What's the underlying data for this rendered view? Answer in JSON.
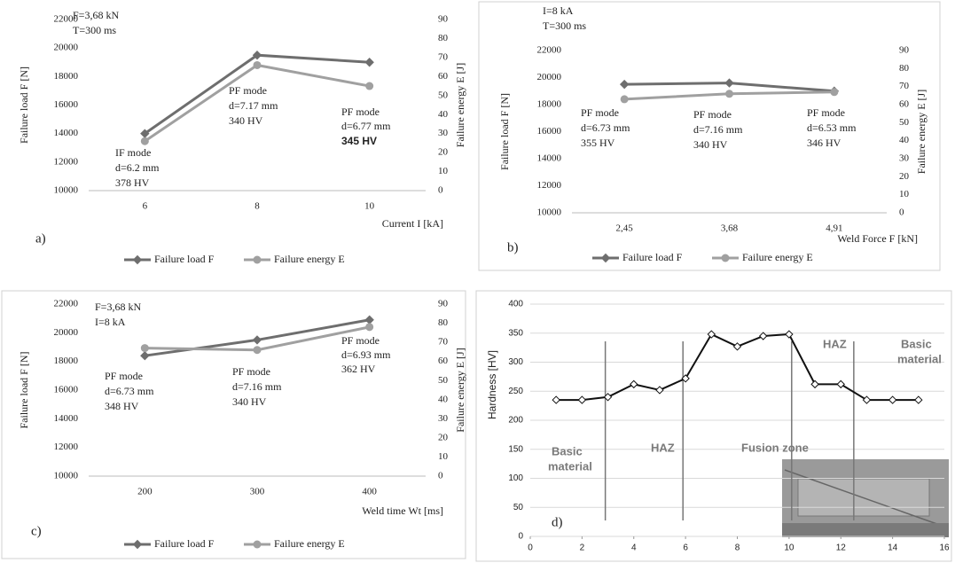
{
  "chart_data": [
    {
      "type": "line",
      "panel_label": "a)",
      "xlabel": "Current I [kA]",
      "ylabel": "Failure load F [N]",
      "y2label": "Failure energy E [J]",
      "categories": [
        "6",
        "8",
        "10"
      ],
      "series": [
        {
          "name": "Failure load F",
          "color": "#6e6e6e",
          "marker": "diamond",
          "axis": "y",
          "values": [
            14000,
            19500,
            19000
          ]
        },
        {
          "name": "Failure energy E",
          "color": "#a0a0a0",
          "marker": "circle",
          "axis": "y2",
          "values": [
            26,
            66,
            55
          ]
        }
      ],
      "ylim": [
        10000,
        22000
      ],
      "yticks": [
        10000,
        12000,
        14000,
        16000,
        18000,
        20000,
        22000
      ],
      "y2lim": [
        0,
        90
      ],
      "y2ticks": [
        0,
        10,
        20,
        30,
        40,
        50,
        60,
        70,
        80,
        90
      ],
      "grid": false,
      "annotations": [
        "F=3,68 kN",
        "T=300 ms",
        "IF mode",
        "d=6.2 mm",
        "378 HV",
        "PF mode",
        "d=7.17 mm",
        "340 HV",
        "PF mode",
        "d=6.77 mm",
        "345 HV"
      ]
    },
    {
      "type": "line",
      "panel_label": "b)",
      "xlabel": "Weld Force F [kN]",
      "ylabel": "Failure load F [N]",
      "y2label": "Failure energy E [J]",
      "categories": [
        "2,45",
        "3,68",
        "4,91"
      ],
      "series": [
        {
          "name": "Failure load F",
          "color": "#6e6e6e",
          "marker": "diamond",
          "axis": "y",
          "values": [
            19500,
            19600,
            19000
          ]
        },
        {
          "name": "Failure energy E",
          "color": "#a0a0a0",
          "marker": "circle",
          "axis": "y2",
          "values": [
            63,
            66,
            67
          ]
        }
      ],
      "ylim": [
        10000,
        22000
      ],
      "yticks": [
        10000,
        12000,
        14000,
        16000,
        18000,
        20000,
        22000
      ],
      "y2lim": [
        0,
        90
      ],
      "y2ticks": [
        0,
        10,
        20,
        30,
        40,
        50,
        60,
        70,
        80,
        90
      ],
      "grid": false,
      "annotations": [
        "I=8 kA",
        "T=300 ms",
        "PF mode",
        "d=6.73 mm",
        "355 HV",
        "PF mode",
        "d=7.16 mm",
        "340 HV",
        "PF mode",
        "d=6.53 mm",
        "346 HV"
      ]
    },
    {
      "type": "line",
      "panel_label": "c)",
      "xlabel": "Weld time Wt [ms]",
      "ylabel": "Failure load F [N]",
      "y2label": "Failure energy E [J]",
      "categories": [
        "200",
        "300",
        "400"
      ],
      "series": [
        {
          "name": "Failure load F",
          "color": "#6e6e6e",
          "marker": "diamond",
          "axis": "y",
          "values": [
            18400,
            19500,
            20900
          ]
        },
        {
          "name": "Failure energy E",
          "color": "#a0a0a0",
          "marker": "circle",
          "axis": "y2",
          "values": [
            67,
            66,
            78
          ]
        }
      ],
      "ylim": [
        10000,
        22000
      ],
      "yticks": [
        10000,
        12000,
        14000,
        16000,
        18000,
        20000,
        22000
      ],
      "y2lim": [
        0,
        90
      ],
      "y2ticks": [
        0,
        10,
        20,
        30,
        40,
        50,
        60,
        70,
        80,
        90
      ],
      "grid": false,
      "annotations": [
        "F=3,68 kN",
        "I=8 kA",
        "PF mode",
        "d=6.73 mm",
        "348 HV",
        "PF mode",
        "d=7.16 mm",
        "340 HV",
        "PF mode",
        "d=6.93 mm",
        "362 HV"
      ]
    },
    {
      "type": "hardness",
      "panel_label": "d)",
      "ylabel": "Hardness [HV]",
      "x": [
        1,
        2,
        3,
        4,
        5,
        6,
        7,
        8,
        9,
        10,
        11,
        12,
        13,
        14,
        15
      ],
      "values": [
        235,
        235,
        240,
        262,
        252,
        272,
        348,
        327,
        345,
        348,
        262,
        262,
        235,
        235,
        235
      ],
      "color": "#111111",
      "xlim": [
        0,
        16
      ],
      "xticks": [
        0,
        2,
        4,
        6,
        8,
        10,
        12,
        14,
        16
      ],
      "ylim": [
        0,
        400
      ],
      "yticks": [
        0,
        50,
        100,
        150,
        200,
        250,
        300,
        350,
        400
      ],
      "grid": true,
      "annotations": [
        "Basic",
        "material",
        "HAZ",
        "Fusion zone",
        "HAZ",
        "Basic",
        "material"
      ]
    }
  ]
}
